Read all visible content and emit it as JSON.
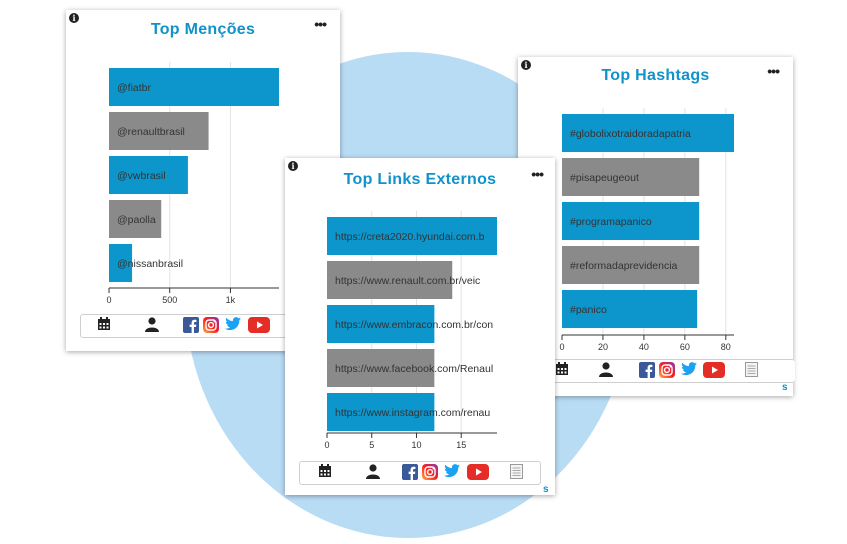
{
  "colors": {
    "accent": "#0c96cc",
    "gray": "#8a8a8a",
    "title": "#1192c9"
  },
  "cards": [
    {
      "id": "mencoes",
      "title": "Top Menções",
      "footer_icons": [
        "calendar-icon",
        "user-icon",
        "facebook-icon",
        "instagram-icon",
        "twitter-icon",
        "youtube-icon"
      ]
    },
    {
      "id": "hashtags",
      "title": "Top Hashtags",
      "footer_icons": [
        "calendar-icon",
        "user-icon",
        "facebook-icon",
        "instagram-icon",
        "twitter-icon",
        "youtube-icon",
        "document-icon"
      ]
    },
    {
      "id": "links",
      "title": "Top Links Externos",
      "footer_icons": [
        "calendar-icon",
        "user-icon",
        "facebook-icon",
        "instagram-icon",
        "twitter-icon",
        "youtube-icon",
        "document-icon"
      ]
    }
  ],
  "s_label": "s",
  "chart_data": [
    {
      "type": "bar",
      "orientation": "horizontal",
      "title": "Top Menções",
      "categories": [
        "@fiatbr",
        "@renaultbrasil",
        "@vwbrasil",
        "@paolla",
        "@nissanbrasil"
      ],
      "values": [
        1400,
        820,
        650,
        430,
        190
      ],
      "bar_colors": [
        "#0c96cc",
        "#8a8a8a",
        "#0c96cc",
        "#8a8a8a",
        "#0c96cc"
      ],
      "xlim": [
        0,
        1400
      ],
      "ticks": [
        0,
        500,
        1000
      ],
      "tick_labels": [
        "0",
        "500",
        "1k"
      ],
      "grid": true
    },
    {
      "type": "bar",
      "orientation": "horizontal",
      "title": "Top Hashtags",
      "categories": [
        "#globolixotraidoradapatria",
        "#pisapeugeout",
        "#programapanico",
        "#reformadaprevidencia",
        "#panico"
      ],
      "values": [
        84,
        67,
        67,
        67,
        66
      ],
      "bar_colors": [
        "#0c96cc",
        "#8a8a8a",
        "#0c96cc",
        "#8a8a8a",
        "#0c96cc"
      ],
      "xlim": [
        0,
        84
      ],
      "ticks": [
        0,
        20,
        40,
        60,
        80
      ],
      "tick_labels": [
        "0",
        "20",
        "40",
        "60",
        "80"
      ],
      "grid": true
    },
    {
      "type": "bar",
      "orientation": "horizontal",
      "title": "Top Links Externos",
      "categories": [
        "https://creta2020.hyundai.com.b",
        "https://www.renault.com.br/veic",
        "https://www.embracon.com.br/con",
        "https://www.facebook.com/Renaul",
        "https://www.instagram.com/renau"
      ],
      "values": [
        19,
        14,
        12,
        12,
        12
      ],
      "bar_colors": [
        "#0c96cc",
        "#8a8a8a",
        "#0c96cc",
        "#8a8a8a",
        "#0c96cc"
      ],
      "xlim": [
        0,
        19
      ],
      "ticks": [
        0,
        5,
        10,
        15
      ],
      "tick_labels": [
        "0",
        "5",
        "10",
        "15"
      ],
      "grid": true
    }
  ]
}
